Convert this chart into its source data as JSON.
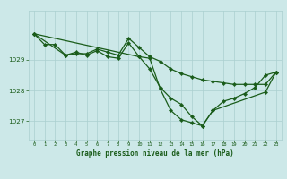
{
  "title": "Graphe pression niveau de la mer (hPa)",
  "bg_color": "#cce8e8",
  "grid_color": "#aacfcf",
  "line_color": "#1a5c1a",
  "marker_color": "#1a5c1a",
  "tick_color": "#1a5c1a",
  "ylim": [
    1026.4,
    1030.6
  ],
  "xlim": [
    -0.5,
    23.5
  ],
  "yticks": [
    1027,
    1028,
    1029
  ],
  "xticks": [
    0,
    1,
    2,
    3,
    4,
    5,
    6,
    7,
    8,
    9,
    10,
    11,
    12,
    13,
    14,
    15,
    16,
    17,
    18,
    19,
    20,
    21,
    22,
    23
  ],
  "series": [
    {
      "x": [
        0,
        1,
        2,
        3,
        4,
        5,
        6,
        7,
        8,
        9,
        10,
        11,
        12,
        13,
        14,
        15,
        16,
        17,
        18,
        19,
        20,
        21,
        22,
        23
      ],
      "y": [
        1029.85,
        1029.5,
        1029.5,
        1029.15,
        1029.2,
        1029.2,
        1029.35,
        1029.25,
        1029.15,
        1029.7,
        1029.4,
        1029.1,
        1028.95,
        1028.7,
        1028.55,
        1028.45,
        1028.35,
        1028.3,
        1028.25,
        1028.2,
        1028.2,
        1028.2,
        1028.2,
        1028.6
      ]
    },
    {
      "x": [
        0,
        10,
        11,
        12,
        13,
        14,
        15,
        16,
        17,
        18,
        19,
        20,
        21,
        22,
        23
      ],
      "y": [
        1029.85,
        1029.1,
        1028.7,
        1028.1,
        1027.75,
        1027.55,
        1027.15,
        1026.85,
        1027.35,
        1027.65,
        1027.75,
        1027.9,
        1028.1,
        1028.5,
        1028.6
      ]
    },
    {
      "x": [
        0,
        3,
        4,
        5,
        6,
        7,
        8,
        9,
        10,
        11,
        12,
        13,
        14,
        15,
        16,
        17,
        22,
        23
      ],
      "y": [
        1029.85,
        1029.15,
        1029.25,
        1029.15,
        1029.3,
        1029.1,
        1029.05,
        1029.55,
        1029.1,
        1029.05,
        1028.05,
        1027.35,
        1027.05,
        1026.95,
        1026.85,
        1027.35,
        1027.95,
        1028.6
      ]
    }
  ]
}
